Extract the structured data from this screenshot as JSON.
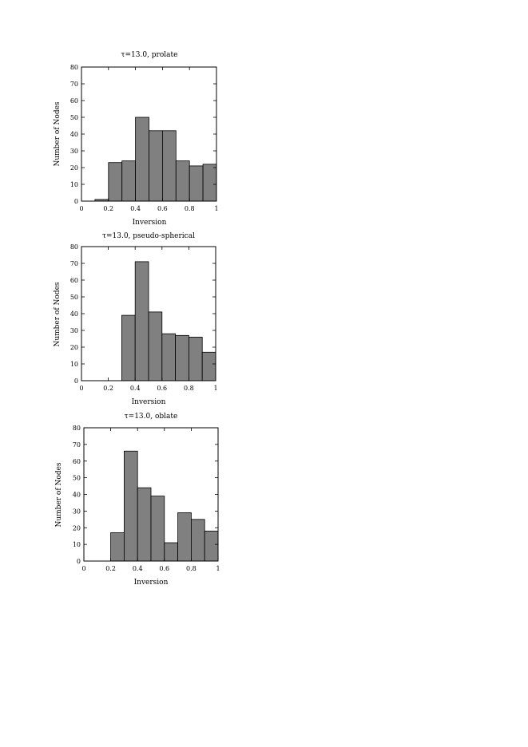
{
  "chart_data": [
    {
      "type": "bar",
      "title": "τ=13.0, prolate",
      "xlabel": "Inversion",
      "ylabel": "Number of Nodes",
      "xlim": [
        0,
        1
      ],
      "ylim": [
        0,
        80
      ],
      "xticks": [
        "0",
        "0.2",
        "0.4",
        "0.6",
        "0.8",
        "1"
      ],
      "yticks": [
        "0",
        "10",
        "20",
        "30",
        "40",
        "50",
        "60",
        "70",
        "80"
      ],
      "bin_width": 0.1,
      "bin_starts": [
        0.1,
        0.2,
        0.3,
        0.4,
        0.5,
        0.6,
        0.7,
        0.8,
        0.9
      ],
      "values": [
        1,
        23,
        24,
        50,
        42,
        42,
        24,
        21,
        22
      ],
      "bar_color": "#808080",
      "grid": false,
      "legend": "none"
    },
    {
      "type": "bar",
      "title": "τ=13.0, pseudo-spherical",
      "xlabel": "Inversion",
      "ylabel": "Number of Nodes",
      "xlim": [
        0,
        1
      ],
      "ylim": [
        0,
        80
      ],
      "xticks": [
        "0",
        "0.2",
        "0.4",
        "0.6",
        "0.8",
        "1"
      ],
      "yticks": [
        "0",
        "10",
        "20",
        "30",
        "40",
        "50",
        "60",
        "70",
        "80"
      ],
      "bin_width": 0.1,
      "bin_starts": [
        0.3,
        0.4,
        0.5,
        0.6,
        0.7,
        0.8,
        0.9
      ],
      "values": [
        39,
        71,
        41,
        28,
        27,
        26,
        17
      ],
      "bar_color": "#808080",
      "grid": false,
      "legend": "none"
    },
    {
      "type": "bar",
      "title": "τ=13.0, oblate",
      "xlabel": "Inversion",
      "ylabel": "Number of Nodes",
      "xlim": [
        0,
        1
      ],
      "ylim": [
        0,
        80
      ],
      "xticks": [
        "0",
        "0.2",
        "0.4",
        "0.6",
        "0.8",
        "1"
      ],
      "yticks": [
        "0",
        "10",
        "20",
        "30",
        "40",
        "50",
        "60",
        "70",
        "80"
      ],
      "bin_width": 0.1,
      "bin_starts": [
        0.2,
        0.3,
        0.4,
        0.5,
        0.6,
        0.7,
        0.8,
        0.9
      ],
      "values": [
        17,
        66,
        44,
        39,
        11,
        29,
        25,
        18
      ],
      "bar_color": "#808080",
      "grid": false,
      "legend": "none"
    }
  ]
}
